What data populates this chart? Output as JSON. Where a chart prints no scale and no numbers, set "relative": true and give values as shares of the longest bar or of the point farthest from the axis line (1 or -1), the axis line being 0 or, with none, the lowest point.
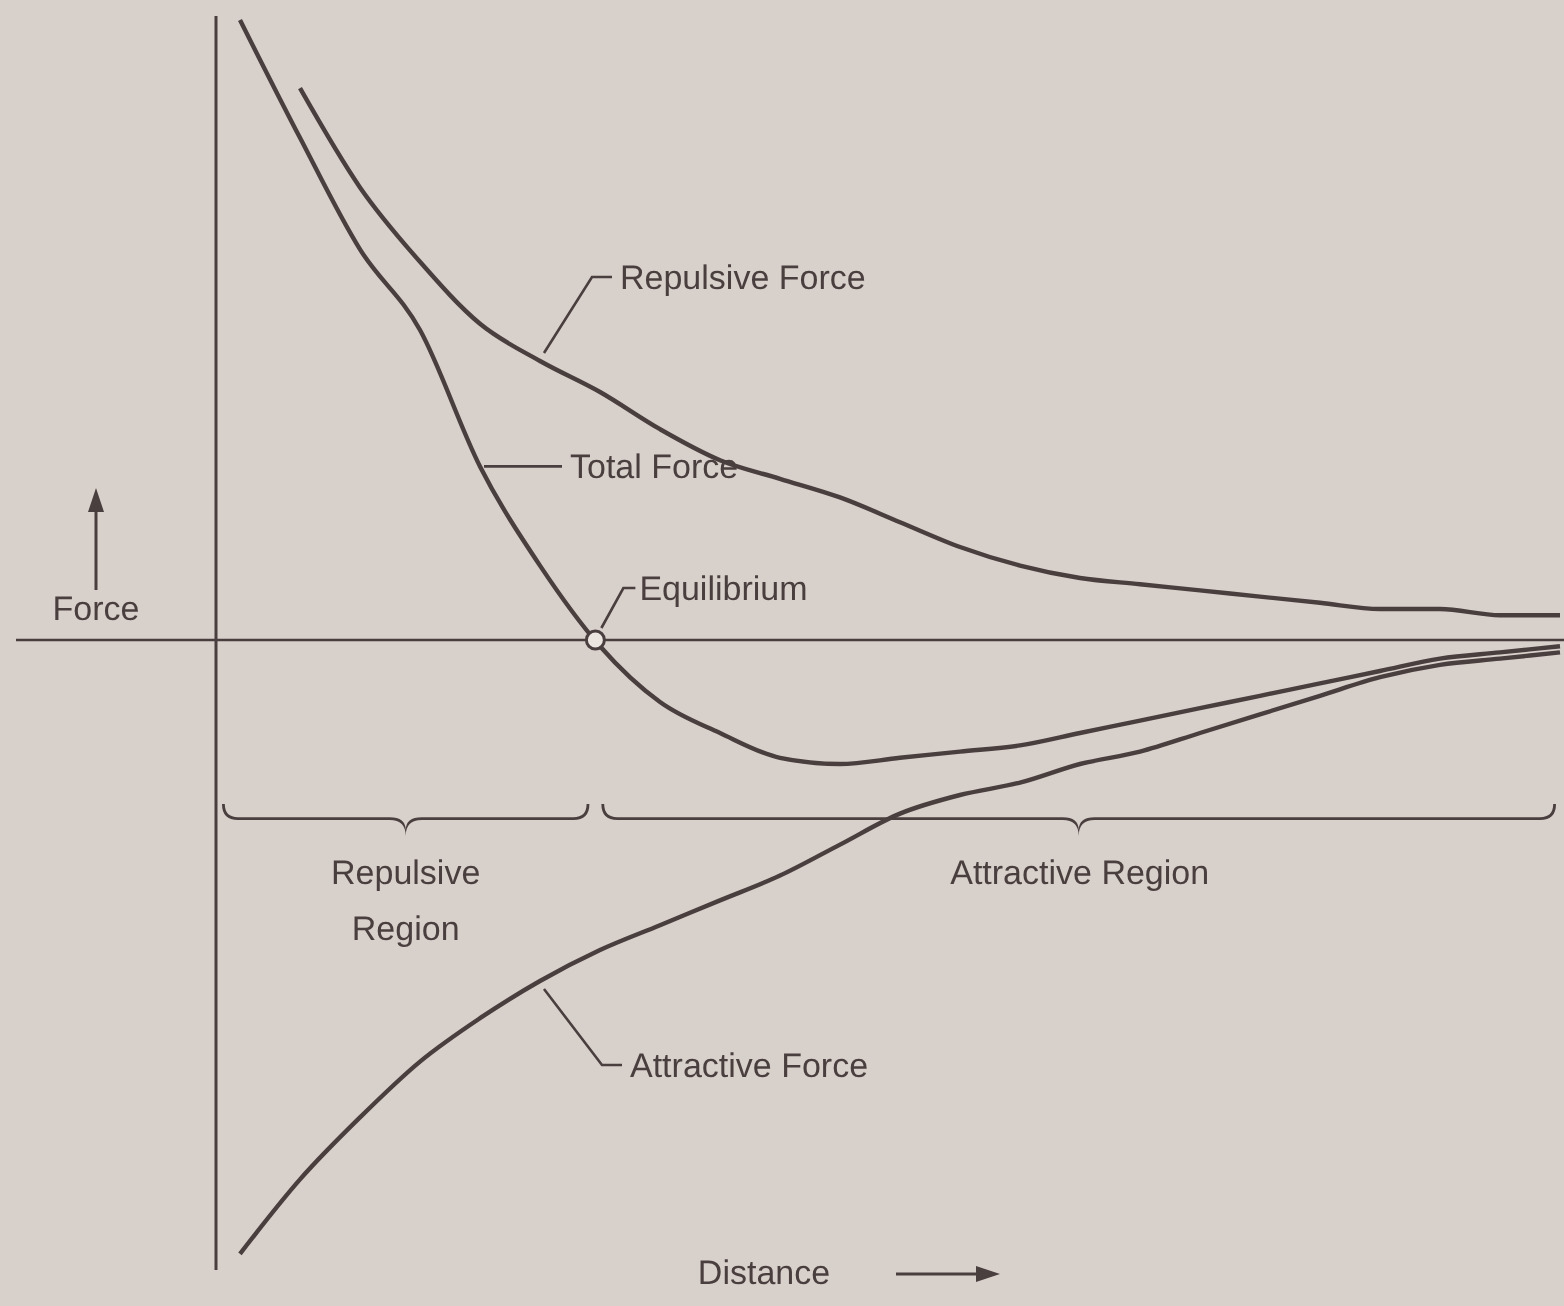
{
  "chart_data": {
    "type": "line",
    "relative": true,
    "xlabel": "Distance",
    "ylabel": "Force",
    "categories": [
      null,
      null,
      null,
      null,
      null,
      null,
      null,
      null,
      null,
      null,
      null,
      null,
      null,
      null,
      null,
      null,
      null,
      null,
      null,
      null,
      null,
      null,
      null
    ],
    "series": [
      {
        "name": "Repulsive Force",
        "color": "#4a3f3f",
        "values": [
          null,
          0.89,
          0.73,
          0.61,
          0.51,
          0.45,
          0.4,
          0.34,
          0.29,
          0.26,
          0.23,
          0.19,
          0.15,
          0.12,
          0.1,
          0.09,
          0.08,
          0.07,
          0.06,
          0.05,
          0.05,
          0.04,
          0.04
        ]
      },
      {
        "name": "Total Force",
        "color": "#4a3f3f",
        "values": [
          1.0,
          0.81,
          0.63,
          0.5,
          0.28,
          0.12,
          -0.01,
          -0.1,
          -0.15,
          -0.19,
          -0.2,
          -0.19,
          -0.18,
          -0.17,
          -0.15,
          -0.13,
          -0.11,
          -0.09,
          -0.07,
          -0.05,
          -0.03,
          -0.02,
          -0.01
        ]
      },
      {
        "name": "Attractive Force",
        "color": "#4a3f3f",
        "values": [
          -0.99,
          -0.87,
          -0.77,
          -0.68,
          -0.61,
          -0.55,
          -0.5,
          -0.46,
          -0.42,
          -0.38,
          -0.33,
          -0.28,
          -0.25,
          -0.23,
          -0.2,
          -0.18,
          -0.15,
          -0.12,
          -0.09,
          -0.06,
          -0.04,
          -0.03,
          -0.02
        ]
      }
    ],
    "annotations": [
      "Repulsive Region",
      "Attractive Region",
      "Equilibrium"
    ]
  }
}
